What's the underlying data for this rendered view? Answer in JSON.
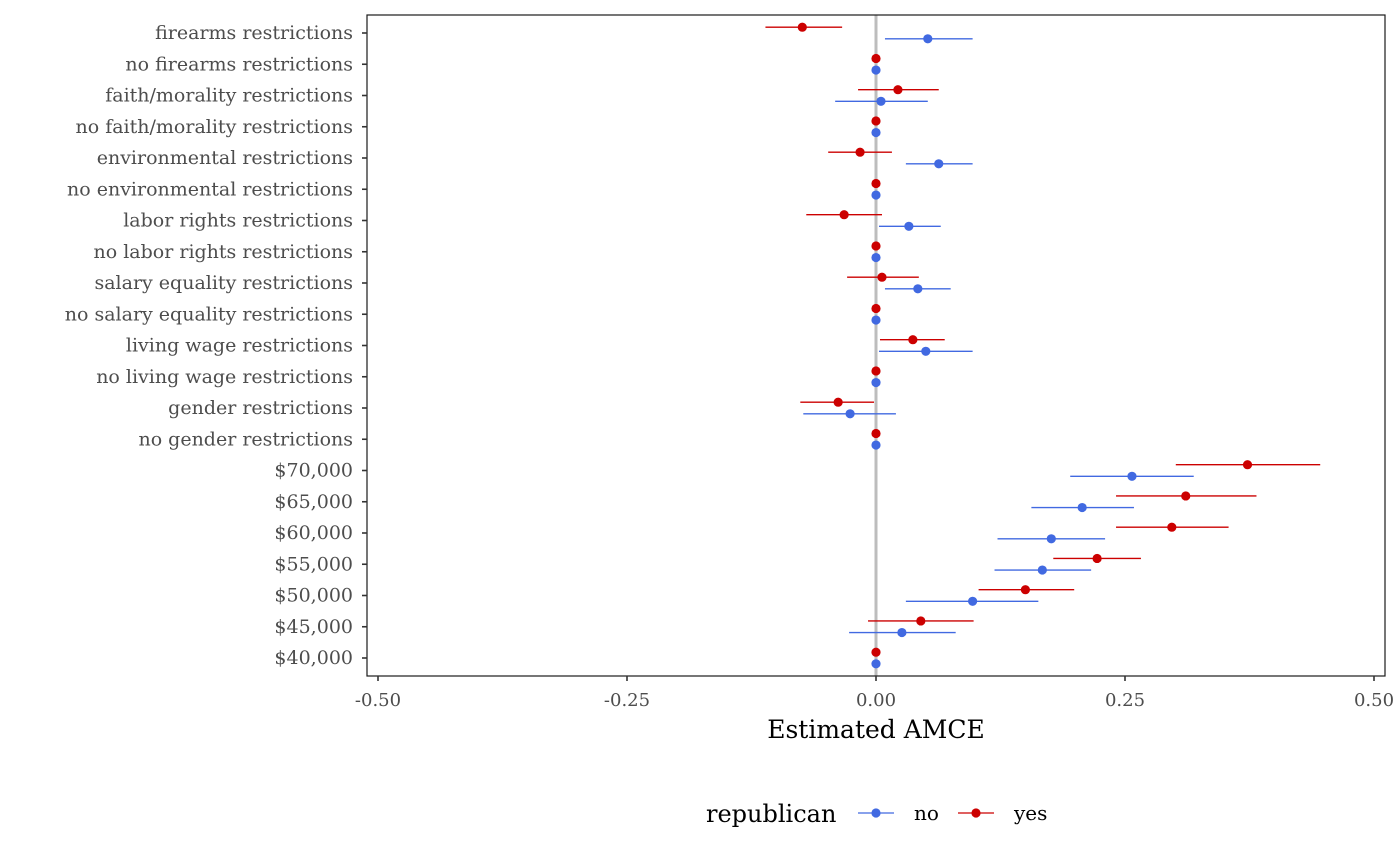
{
  "chart_data": {
    "type": "scatter",
    "subtype": "dot-and-whisker",
    "xlabel": "Estimated AMCE",
    "ylabel": "",
    "xlim": [
      -0.5,
      0.5
    ],
    "x_ticks": [
      "-0.50",
      "-0.25",
      "0.00",
      "0.25",
      "0.50"
    ],
    "x_tick_values": [
      -0.5,
      -0.25,
      0,
      0.25,
      0.5
    ],
    "reference_line": 0,
    "grid": false,
    "legend": {
      "title": "republican",
      "position": "bottom",
      "entries": [
        {
          "label": "no",
          "color": "#4169e1"
        },
        {
          "label": "yes",
          "color": "#cc0000"
        }
      ]
    },
    "categories": [
      "firearms restrictions",
      "no firearms restrictions",
      "faith/morality restrictions",
      "no faith/morality restrictions",
      "environmental restrictions",
      "no environmental restrictions",
      "labor rights restrictions",
      "no labor rights restrictions",
      "salary equality restrictions",
      "no salary equality restrictions",
      "living wage restrictions",
      "no living wage restrictions",
      "gender restrictions",
      "no gender restrictions",
      "$70,000",
      "$65,000",
      "$60,000",
      "$55,000",
      "$50,000",
      "$45,000",
      "$40,000"
    ],
    "series": [
      {
        "name": "yes",
        "color": "#cc0000",
        "estimates": [
          -0.074,
          0,
          0.022,
          0,
          -0.016,
          0,
          -0.032,
          0,
          0.006,
          0,
          0.037,
          0,
          -0.038,
          0,
          0.373,
          0.311,
          0.297,
          0.222,
          0.15,
          0.045,
          0
        ],
        "lower": [
          -0.111,
          0,
          -0.018,
          0,
          -0.048,
          0,
          -0.07,
          0,
          -0.029,
          0,
          0.004,
          0,
          -0.076,
          0,
          0.301,
          0.241,
          0.241,
          0.178,
          0.103,
          -0.008,
          0
        ],
        "upper": [
          -0.034,
          0,
          0.063,
          0,
          0.016,
          0,
          0.006,
          0,
          0.043,
          0,
          0.069,
          0,
          -0.002,
          0,
          0.446,
          0.382,
          0.354,
          0.266,
          0.199,
          0.098,
          0
        ]
      },
      {
        "name": "no",
        "color": "#4169e1",
        "estimates": [
          0.052,
          0,
          0.005,
          0,
          0.063,
          0,
          0.033,
          0,
          0.042,
          0,
          0.05,
          0,
          -0.026,
          0,
          0.257,
          0.207,
          0.176,
          0.167,
          0.097,
          0.026,
          0
        ],
        "lower": [
          0.009,
          0,
          -0.041,
          0,
          0.03,
          0,
          0.003,
          0,
          0.009,
          0,
          0.003,
          0,
          -0.073,
          0,
          0.195,
          0.156,
          0.122,
          0.119,
          0.03,
          -0.027,
          0
        ],
        "upper": [
          0.097,
          0,
          0.052,
          0,
          0.097,
          0,
          0.065,
          0,
          0.075,
          0,
          0.097,
          0,
          0.02,
          0,
          0.319,
          0.259,
          0.23,
          0.216,
          0.163,
          0.08,
          0
        ]
      }
    ]
  }
}
